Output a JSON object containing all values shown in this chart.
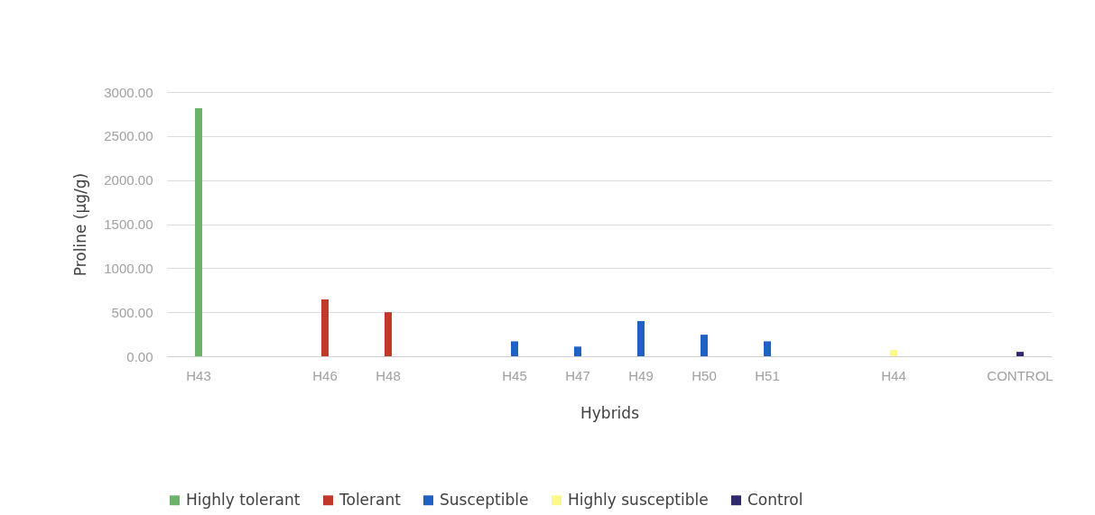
{
  "chart_data": {
    "type": "bar",
    "xlabel": "Hybrids",
    "ylabel": "Proline (µg/g)",
    "categories": [
      "H43",
      null,
      "H46",
      "H48",
      null,
      "H45",
      "H47",
      "H49",
      "H50",
      "H51",
      null,
      "H44",
      null,
      "CONTROL"
    ],
    "series": [
      {
        "name": "Highly tolerant",
        "color": "#6bb36b",
        "values": [
          2815,
          null,
          null,
          null,
          null,
          null,
          null,
          null,
          null,
          null,
          null,
          null,
          null,
          null
        ]
      },
      {
        "name": "Tolerant",
        "color": "#c0392b",
        "values": [
          null,
          null,
          645,
          500,
          null,
          null,
          null,
          null,
          null,
          null,
          null,
          null,
          null,
          null
        ]
      },
      {
        "name": "Susceptible",
        "color": "#1f62c4",
        "values": [
          null,
          null,
          null,
          null,
          null,
          170,
          110,
          400,
          245,
          170,
          null,
          null,
          null,
          null
        ]
      },
      {
        "name": "Highly susceptible",
        "color": "#fbf98a",
        "values": [
          null,
          null,
          null,
          null,
          null,
          null,
          null,
          null,
          null,
          null,
          null,
          70,
          null,
          null
        ]
      },
      {
        "name": "Control",
        "color": "#2f2a6e",
        "values": [
          null,
          null,
          null,
          null,
          null,
          null,
          null,
          null,
          null,
          null,
          null,
          null,
          null,
          50
        ]
      }
    ],
    "ylim": [
      0,
      3000
    ],
    "yticks": [
      {
        "value": 0,
        "label": "0.00"
      },
      {
        "value": 500,
        "label": "500.00"
      },
      {
        "value": 1000,
        "label": "1000.00"
      },
      {
        "value": 1500,
        "label": "1500.00"
      },
      {
        "value": 2000,
        "label": "2000.00"
      },
      {
        "value": 2500,
        "label": "2500.00"
      },
      {
        "value": 3000,
        "label": "3000.00"
      }
    ],
    "grid": "y",
    "legend": "bottom"
  }
}
